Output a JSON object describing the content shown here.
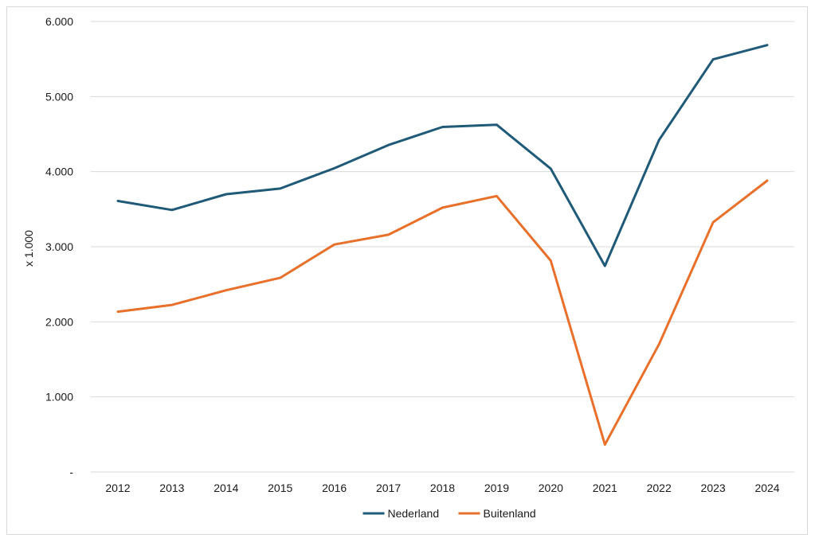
{
  "chart_data": {
    "type": "line",
    "title": "",
    "xlabel": "",
    "ylabel": "x 1.000",
    "categories": [
      "2012",
      "2013",
      "2014",
      "2015",
      "2016",
      "2017",
      "2018",
      "2019",
      "2020",
      "2021",
      "2022",
      "2023",
      "2024"
    ],
    "y_tick_labels": [
      "-",
      "1.000",
      "2.000",
      "3.000",
      "4.000",
      "5.000",
      "6.000"
    ],
    "y_ticks": [
      0,
      1000,
      2000,
      3000,
      4000,
      5000,
      6000
    ],
    "ylim": [
      0,
      6000
    ],
    "grid": true,
    "legend_position": "bottom",
    "series": [
      {
        "name": "Nederland",
        "color": "#1f5a78",
        "values": [
          3610,
          3490,
          3700,
          3775,
          4045,
          4355,
          4595,
          4625,
          4040,
          2745,
          4420,
          5495,
          5685
        ]
      },
      {
        "name": "Buitenland",
        "color": "#e8702a",
        "values": [
          2135,
          2225,
          2420,
          2585,
          3030,
          3160,
          3520,
          3675,
          2815,
          365,
          1700,
          3325,
          3880
        ]
      }
    ]
  }
}
